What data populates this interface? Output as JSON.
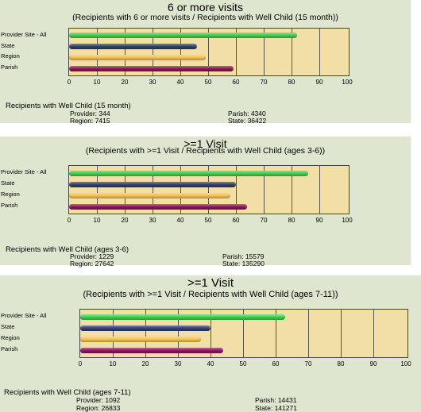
{
  "chart_data": [
    {
      "type": "bar",
      "title": "6 or more visits",
      "subtitle": "(Recipients with 6 or more visits /  Recipients with Well Child (15 month))",
      "categories": [
        "Provider Site - All",
        "State",
        "Region",
        "Parish"
      ],
      "values": [
        82,
        46,
        49,
        59
      ],
      "colors": [
        "#3ecf4a",
        "#2f3f6e",
        "#f3c24f",
        "#8e1557"
      ],
      "xlim": [
        0,
        100
      ],
      "xticks": [
        "0",
        "10",
        "20",
        "30",
        "40",
        "50",
        "60",
        "70",
        "80",
        "90",
        "100"
      ],
      "footer": {
        "title": "Recipients with Well Child (15 month)",
        "provider": "Provider: 344",
        "region": "Region: 7415",
        "parish": "Parish: 4340",
        "state": "State: 36422"
      }
    },
    {
      "type": "bar",
      "title": ">=1 Visit",
      "subtitle": "(Recipients with >=1 Visit /  Recipients with Well Child (ages 3-6))",
      "categories": [
        "Provider Site - All",
        "State",
        "Region",
        "Parish"
      ],
      "values": [
        86,
        60,
        58,
        64
      ],
      "colors": [
        "#3ecf4a",
        "#2f3f6e",
        "#f3c24f",
        "#8e1557"
      ],
      "xlim": [
        0,
        100
      ],
      "xticks": [
        "0",
        "10",
        "20",
        "30",
        "40",
        "50",
        "60",
        "70",
        "80",
        "90",
        "100"
      ],
      "footer": {
        "title": "Recipients with Well Child (ages 3-6)",
        "provider": "Provider: 1229",
        "region": "Region: 27642",
        "parish": "Parish: 15579",
        "state": "State: 135290"
      }
    },
    {
      "type": "bar",
      "title": ">=1 Visit",
      "subtitle": "(Recipients with >=1 Visit /  Recipients with Well Child (ages 7-11))",
      "categories": [
        "Provider Site - All",
        "State",
        "Region",
        "Parish"
      ],
      "values": [
        63,
        40,
        37,
        44
      ],
      "colors": [
        "#3ecf4a",
        "#2f3f6e",
        "#f3c24f",
        "#8e1557"
      ],
      "xlim": [
        0,
        100
      ],
      "xticks": [
        "0",
        "10",
        "20",
        "30",
        "40",
        "50",
        "60",
        "70",
        "80",
        "90",
        "100"
      ],
      "footer": {
        "title": "Recipients with Well Child (ages 7-11)",
        "provider": "Provider: 1092",
        "region": "Region: 26833",
        "parish": "Parish: 14431",
        "state": "State: 141271"
      }
    }
  ]
}
